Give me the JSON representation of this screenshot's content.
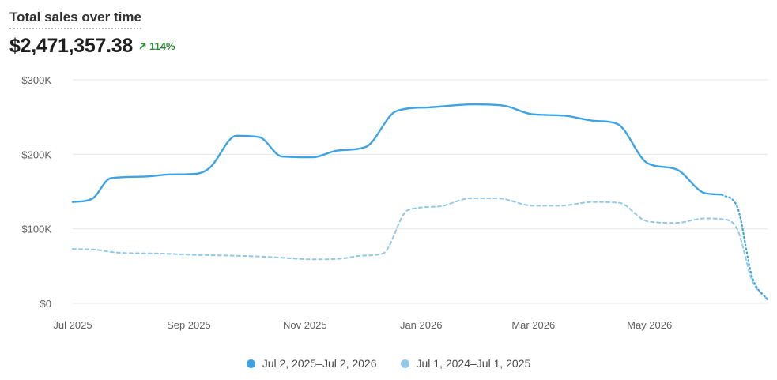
{
  "header": {
    "title": "Total sales over time",
    "total": "$2,471,357.38",
    "change": "114%",
    "change_icon": "arrow-up-right-icon"
  },
  "colors": {
    "current": "#3ea3e4",
    "previous": "#93c8e8",
    "grid": "#e6e6e6",
    "change": "#2f8a3b"
  },
  "chart_data": {
    "type": "line",
    "title": "Total sales over time",
    "xlabel": "",
    "ylabel": "",
    "ylim": [
      0,
      300000
    ],
    "xlim": [
      "2025-07-02",
      "2026-07-02"
    ],
    "y_ticks": [
      {
        "value": 0,
        "label": "$0"
      },
      {
        "value": 100000,
        "label": "$100K"
      },
      {
        "value": 200000,
        "label": "$200K"
      },
      {
        "value": 300000,
        "label": "$300K"
      }
    ],
    "x_ticks": [
      {
        "date": "2025-07-02",
        "label": "Jul 2025"
      },
      {
        "date": "2025-09-01",
        "label": "Sep 2025"
      },
      {
        "date": "2025-11-01",
        "label": "Nov 2025"
      },
      {
        "date": "2026-01-01",
        "label": "Jan 2026"
      },
      {
        "date": "2026-03-01",
        "label": "Mar 2026"
      },
      {
        "date": "2026-05-01",
        "label": "May 2026"
      }
    ],
    "grid": true,
    "legend_position": "bottom",
    "series": [
      {
        "name": "Jul 2, 2025–Jul 2, 2026",
        "color": "#3ea3e4",
        "style": "solid",
        "partial_from": "2026-06-08",
        "points": [
          [
            "2025-07-02",
            136000
          ],
          [
            "2025-07-12",
            140000
          ],
          [
            "2025-07-22",
            168000
          ],
          [
            "2025-08-08",
            170000
          ],
          [
            "2025-08-22",
            173000
          ],
          [
            "2025-09-05",
            174000
          ],
          [
            "2025-09-12",
            182000
          ],
          [
            "2025-09-26",
            225000
          ],
          [
            "2025-10-08",
            223000
          ],
          [
            "2025-10-20",
            197000
          ],
          [
            "2025-11-05",
            196000
          ],
          [
            "2025-11-18",
            205000
          ],
          [
            "2025-12-03",
            210000
          ],
          [
            "2025-12-19",
            258000
          ],
          [
            "2026-01-05",
            263000
          ],
          [
            "2026-01-29",
            267000
          ],
          [
            "2026-02-14",
            265000
          ],
          [
            "2026-02-28",
            254000
          ],
          [
            "2026-03-17",
            252000
          ],
          [
            "2026-04-02",
            245000
          ],
          [
            "2026-04-14",
            241000
          ],
          [
            "2026-04-30",
            188000
          ],
          [
            "2026-05-15",
            180000
          ],
          [
            "2026-05-30",
            148000
          ],
          [
            "2026-06-08",
            146000
          ],
          [
            "2026-06-16",
            130000
          ],
          [
            "2026-06-24",
            35000
          ],
          [
            "2026-07-02",
            5000
          ]
        ]
      },
      {
        "name": "Jul 1, 2024–Jul 1, 2025",
        "color": "#93c8e8",
        "style": "dashed",
        "points": [
          [
            "2025-07-02",
            73000
          ],
          [
            "2025-07-14",
            72000
          ],
          [
            "2025-07-26",
            68000
          ],
          [
            "2025-08-15",
            67000
          ],
          [
            "2025-09-05",
            65000
          ],
          [
            "2025-09-25",
            64000
          ],
          [
            "2025-10-15",
            62000
          ],
          [
            "2025-11-05",
            59000
          ],
          [
            "2025-11-20",
            60000
          ],
          [
            "2025-12-01",
            64000
          ],
          [
            "2025-12-12",
            67000
          ],
          [
            "2025-12-25",
            125000
          ],
          [
            "2026-01-10",
            130000
          ],
          [
            "2026-01-27",
            141000
          ],
          [
            "2026-02-10",
            141000
          ],
          [
            "2026-03-01",
            131000
          ],
          [
            "2026-03-15",
            131000
          ],
          [
            "2026-04-01",
            136000
          ],
          [
            "2026-04-15",
            135000
          ],
          [
            "2026-04-30",
            110000
          ],
          [
            "2026-05-15",
            108000
          ],
          [
            "2026-05-30",
            114000
          ],
          [
            "2026-06-08",
            113000
          ],
          [
            "2026-06-16",
            100000
          ],
          [
            "2026-06-24",
            30000
          ],
          [
            "2026-07-02",
            5000
          ]
        ]
      }
    ]
  }
}
